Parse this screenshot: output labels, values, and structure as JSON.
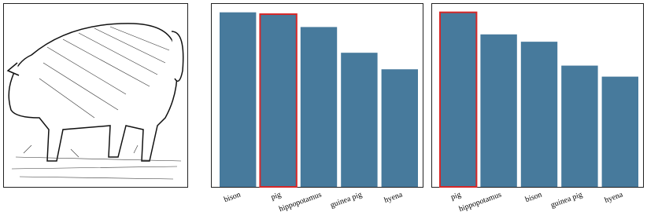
{
  "chart_data": [
    {
      "type": "bar",
      "categories": [
        "bison",
        "pig",
        "hippopotamus",
        "guinea pig",
        "hyena"
      ],
      "values": [
        0.95,
        0.94,
        0.87,
        0.73,
        0.64
      ],
      "color": "#477a9c",
      "highlight": "pig",
      "highlight_color": "#d62728",
      "ylim": [
        0,
        1
      ]
    },
    {
      "type": "bar",
      "categories": [
        "pig",
        "hippopotamus",
        "bison",
        "guinea pig",
        "hyena"
      ],
      "values": [
        0.95,
        0.83,
        0.79,
        0.66,
        0.6
      ],
      "color": "#477a9c",
      "highlight": "pig",
      "highlight_color": "#d62728",
      "ylim": [
        0,
        1
      ]
    }
  ]
}
